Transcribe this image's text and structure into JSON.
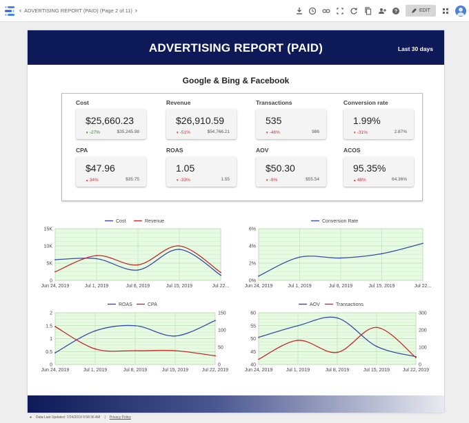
{
  "topbar": {
    "breadcrumb": "ADVERTISING REPORT (PAID) (Page 2 of 11)",
    "edit_label": "EDIT",
    "icons": [
      "download-icon",
      "history-icon",
      "link-icon",
      "fullscreen-icon",
      "refresh-icon",
      "copy-icon",
      "share-icon",
      "help-icon",
      "grid-icon"
    ]
  },
  "report": {
    "title": "ADVERTISING REPORT (PAID)",
    "date_range": "Last 30 days",
    "subtitle": "Google & Bing & Facebook"
  },
  "kpis": [
    {
      "label": "Cost",
      "value": "$25,660.23",
      "delta": "-27%",
      "direction": "down",
      "delta_color": "#2e7d32",
      "prev": "$35,245.98"
    },
    {
      "label": "Revenue",
      "value": "$26,910.59",
      "delta": "-51%",
      "direction": "down",
      "delta_color": "#d32f2f",
      "prev": "$54,766.21"
    },
    {
      "label": "Transactions",
      "value": "535",
      "delta": "-46%",
      "direction": "down",
      "delta_color": "#d32f2f",
      "prev": "986"
    },
    {
      "label": "Conversion rate",
      "value": "1.99%",
      "delta": "-31%",
      "direction": "down",
      "delta_color": "#d32f2f",
      "prev": "2.87%"
    },
    {
      "label": "CPA",
      "value": "$47.96",
      "delta": "34%",
      "direction": "up",
      "delta_color": "#d32f2f",
      "prev": "$35.75"
    },
    {
      "label": "ROAS",
      "value": "1.05",
      "delta": "-33%",
      "direction": "down",
      "delta_color": "#d32f2f",
      "prev": "1.55"
    },
    {
      "label": "AOV",
      "value": "$50.30",
      "delta": "-9%",
      "direction": "down",
      "delta_color": "#d32f2f",
      "prev": "$55.54"
    },
    {
      "label": "ACOS",
      "value": "95.35%",
      "delta": "48%",
      "direction": "up",
      "delta_color": "#d32f2f",
      "prev": "64.36%"
    }
  ],
  "chart_data": [
    {
      "type": "line",
      "x": [
        "Jun 24, 2019",
        "Jul 1, 2019",
        "Jul 8, 2019",
        "Jul 15, 2019",
        "Jul 22..."
      ],
      "y_ticks": [
        "15K",
        "10K",
        "5K",
        "0"
      ],
      "ylim": [
        0,
        15000
      ],
      "grid": true,
      "background": "#e6fbe2",
      "series": [
        {
          "name": "Cost",
          "axis": "left",
          "color": "#3949ab",
          "values": [
            6000,
            6300,
            3000,
            9000,
            1500
          ]
        },
        {
          "name": "Revenue",
          "axis": "left",
          "color": "#c62828",
          "values": [
            2500,
            7200,
            4500,
            10000,
            2300
          ]
        }
      ]
    },
    {
      "type": "line",
      "x": [
        "Jun 24, 2019",
        "Jul 1, 2019",
        "Jul 8, 2019",
        "Jul 15, 2019",
        "Jul 22..."
      ],
      "y_ticks": [
        "6%",
        "4%",
        "2%",
        "0%"
      ],
      "ylim": [
        0,
        6
      ],
      "grid": true,
      "background": "#e6fbe2",
      "series": [
        {
          "name": "Conversion Rate",
          "axis": "left",
          "color": "#3949ab",
          "values": [
            0.5,
            2.7,
            2.6,
            3.1,
            4.3
          ]
        }
      ]
    },
    {
      "type": "line",
      "x": [
        "Jun 24, 2019",
        "Jul 1, 2019",
        "Jul 8, 2019",
        "Jul 15, 2019",
        "Jul 22, 2019"
      ],
      "y_ticks": [
        "2",
        "1.5",
        "1",
        "0.5",
        "0"
      ],
      "y2_ticks": [
        "150",
        "100",
        "50",
        "0"
      ],
      "ylim": [
        0,
        2
      ],
      "y2lim": [
        0,
        150
      ],
      "grid": true,
      "background": "#e6fbe2",
      "series": [
        {
          "name": "ROAS",
          "axis": "left",
          "color": "#3949ab",
          "values": [
            0.45,
            1.3,
            1.5,
            1.1,
            1.7
          ]
        },
        {
          "name": "CPA",
          "axis": "right",
          "color": "#c62828",
          "values": [
            110,
            45,
            40,
            40,
            25
          ]
        }
      ]
    },
    {
      "type": "line",
      "x": [
        "Jun 24, 2019",
        "Jul 1, 2019",
        "Jul 8, 2019",
        "Jul 15, 2019",
        "Jul 22, 2019"
      ],
      "y_ticks": [
        "60",
        "55",
        "50",
        "45",
        "40"
      ],
      "y2_ticks": [
        "300",
        "200",
        "100",
        "0"
      ],
      "ylim": [
        40,
        60
      ],
      "y2lim": [
        0,
        300
      ],
      "grid": true,
      "background": "#e6fbe2",
      "series": [
        {
          "name": "AOV",
          "axis": "left",
          "color": "#3949ab",
          "values": [
            50.5,
            55,
            58,
            47,
            43
          ]
        },
        {
          "name": "Transactions",
          "axis": "right",
          "color": "#c62828",
          "values": [
            30,
            140,
            70,
            215,
            40
          ]
        }
      ]
    }
  ],
  "status": {
    "updated": "Data Last Updated: 7/24/2019 9:58:36 AM",
    "privacy": "Privacy Policy"
  }
}
